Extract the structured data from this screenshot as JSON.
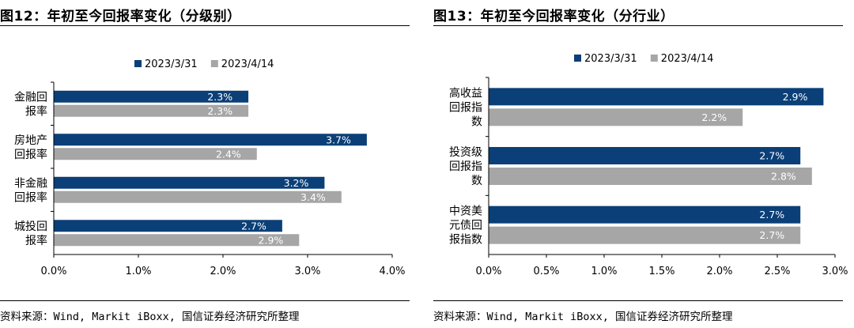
{
  "panels": [
    {
      "figure_title": "图12：年初至今回报率变化（分级别）",
      "source_note": "资料来源：Wind, Markit iBoxx, 国信证券经济研究所整理"
    },
    {
      "figure_title": "图13：年初至今回报率变化（分行业）",
      "source_note": "资料来源：Wind, Markit iBoxx, 国信证券经济研究所整理"
    }
  ],
  "colors": {
    "series_1": "#0b3f77",
    "series_2": "#a6a6a6",
    "label_text": "#ffffff",
    "grid": "#d9d9d9"
  },
  "chart_data": [
    {
      "type": "bar",
      "orientation": "horizontal",
      "title": "年初至今回报率变化（分级别）",
      "categories": [
        [
          "金融回",
          "报率"
        ],
        [
          "房地产",
          "回报率"
        ],
        [
          "非金融",
          "回报率"
        ],
        [
          "城投回",
          "报率"
        ]
      ],
      "series": [
        {
          "name": "2023/3/31",
          "values": [
            2.3,
            3.7,
            3.2,
            2.7
          ]
        },
        {
          "name": "2023/4/14",
          "values": [
            2.3,
            2.4,
            3.4,
            2.9
          ]
        }
      ],
      "value_suffix": "%",
      "xlim": [
        0,
        4
      ],
      "xticks": [
        0,
        1,
        2,
        3,
        4
      ],
      "xtick_labels": [
        "0.0%",
        "1.0%",
        "2.0%",
        "3.0%",
        "4.0%"
      ],
      "legend_position": "top"
    },
    {
      "type": "bar",
      "orientation": "horizontal",
      "title": "年初至今回报率变化（分行业）",
      "categories": [
        [
          "高收益",
          "回报指",
          "数"
        ],
        [
          "投资级",
          "回报指",
          "数"
        ],
        [
          "中资美",
          "元债回",
          "报指数"
        ]
      ],
      "series": [
        {
          "name": "2023/3/31",
          "values": [
            2.9,
            2.7,
            2.7
          ]
        },
        {
          "name": "2023/4/14",
          "values": [
            2.2,
            2.8,
            2.7
          ]
        }
      ],
      "value_suffix": "%",
      "xlim": [
        0,
        3
      ],
      "xticks": [
        0,
        0.5,
        1,
        1.5,
        2,
        2.5,
        3
      ],
      "xtick_labels": [
        "0.0%",
        "0.5%",
        "1.0%",
        "1.5%",
        "2.0%",
        "2.5%",
        "3.0%"
      ],
      "legend_position": "top"
    }
  ]
}
